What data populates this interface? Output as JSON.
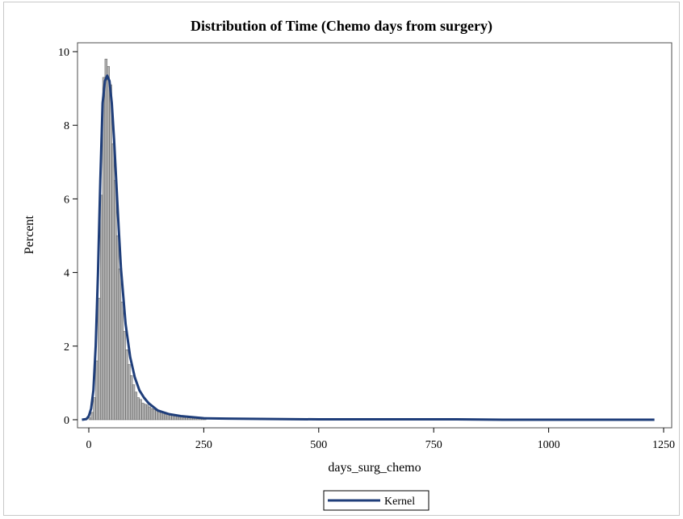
{
  "chart_data": {
    "type": "bar",
    "title": "Distribution of Time (Chemo days from surgery)",
    "xlabel": "days_surg_chemo",
    "ylabel": "Percent",
    "xlim": [
      -20,
      1250
    ],
    "ylim": [
      0,
      10
    ],
    "x_ticks": [
      0,
      250,
      500,
      750,
      1000,
      1250
    ],
    "y_ticks": [
      0,
      2,
      4,
      6,
      8,
      10
    ],
    "bin_width": 5,
    "legend": {
      "position": "bottom-center",
      "entries": [
        "Kernel"
      ]
    },
    "colors": {
      "bars": "#b4b4b4",
      "bar_edge": "#555555",
      "kernel": "#1f3e7a"
    },
    "histogram": {
      "x": [
        0,
        5,
        10,
        15,
        20,
        25,
        30,
        35,
        40,
        45,
        50,
        55,
        60,
        65,
        70,
        75,
        80,
        85,
        90,
        95,
        100,
        105,
        110,
        115,
        120,
        125,
        130,
        135,
        140,
        145,
        150,
        155,
        160,
        165,
        170,
        175,
        180,
        185,
        190,
        195,
        200,
        205,
        210,
        215,
        220,
        225,
        230,
        235,
        240,
        245,
        250
      ],
      "values": [
        0.05,
        0.2,
        0.6,
        1.6,
        3.3,
        6.1,
        9.3,
        9.8,
        9.6,
        9.1,
        7.5,
        6.5,
        5.0,
        4.1,
        3.2,
        2.4,
        1.9,
        1.5,
        1.2,
        0.95,
        0.75,
        0.6,
        0.55,
        0.45,
        0.42,
        0.4,
        0.35,
        0.3,
        0.28,
        0.25,
        0.22,
        0.2,
        0.18,
        0.15,
        0.14,
        0.12,
        0.11,
        0.1,
        0.09,
        0.08,
        0.07,
        0.06,
        0.06,
        0.05,
        0.05,
        0.04,
        0.04,
        0.03,
        0.03,
        0.03,
        0.02
      ]
    },
    "series": [
      {
        "name": "Kernel",
        "x": [
          -15,
          -5,
          0,
          5,
          10,
          15,
          20,
          25,
          30,
          35,
          40,
          45,
          50,
          55,
          60,
          65,
          70,
          80,
          90,
          100,
          110,
          120,
          130,
          140,
          150,
          175,
          200,
          250,
          300,
          400,
          500,
          600,
          700,
          800,
          900,
          1000,
          1100,
          1200,
          1230
        ],
        "values": [
          0.0,
          0.02,
          0.1,
          0.3,
          0.8,
          2.0,
          4.0,
          6.5,
          8.6,
          9.2,
          9.35,
          9.2,
          8.6,
          7.6,
          6.4,
          5.2,
          4.1,
          2.6,
          1.7,
          1.15,
          0.8,
          0.6,
          0.45,
          0.35,
          0.25,
          0.15,
          0.1,
          0.04,
          0.03,
          0.02,
          0.01,
          0.01,
          0.01,
          0.01,
          0.0,
          0.0,
          0.0,
          0.0,
          0.0
        ]
      }
    ]
  }
}
